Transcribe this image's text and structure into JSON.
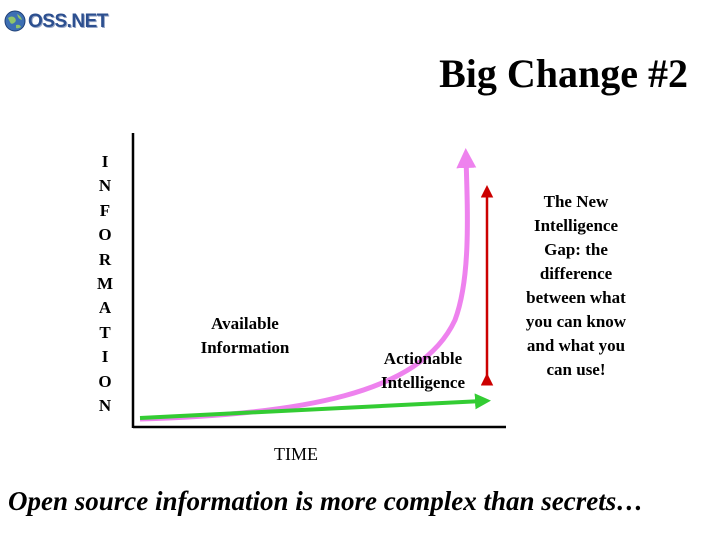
{
  "header": {
    "logo_text": "OSS.NET",
    "logo_icon": "globe-icon",
    "title": "Big Change #2"
  },
  "diagram": {
    "y_axis_letters": [
      "I",
      "N",
      "F",
      "O",
      "R",
      "M",
      "A",
      "T",
      "I",
      "O",
      "N"
    ],
    "x_axis_label": "TIME",
    "curve_available_label": "Available\nInformation",
    "line_actionable_label": "Actionable\nIntelligence",
    "gap_label": "The New\nIntelligence\nGap:  the\ndifference\nbetween what\nyou can know\nand what you\ncan use!",
    "colors": {
      "available_curve": "#ee82ee",
      "actionable_line": "#33cc33",
      "gap_arrow": "#cc0000",
      "axes": "#000000"
    }
  },
  "footer": {
    "caption": "Open source information is more complex than secrets…"
  }
}
